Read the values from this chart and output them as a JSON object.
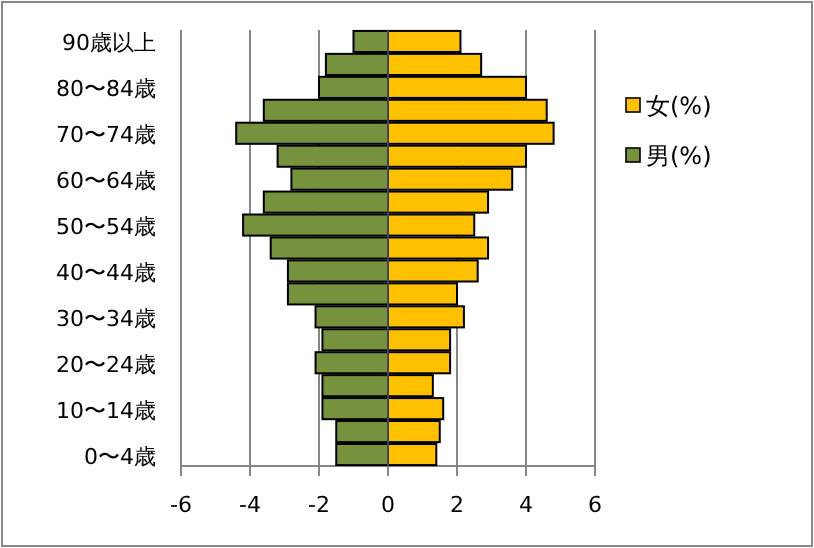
{
  "chart_data": {
    "type": "bar",
    "stacked": true,
    "orientation": "horizontal",
    "categories": [
      "90歳以上",
      null,
      "80〜84歳",
      null,
      "70〜74歳",
      null,
      "60〜64歳",
      null,
      "50〜54歳",
      null,
      "40〜44歳",
      null,
      "30〜34歳",
      null,
      "20〜24歳",
      null,
      "10〜14歳",
      null,
      "0〜4歳"
    ],
    "series": [
      {
        "name": "女(%)",
        "color": "#ffc000",
        "values": [
          2.1,
          2.7,
          4.0,
          4.6,
          4.8,
          4.0,
          3.6,
          2.9,
          2.5,
          2.9,
          2.6,
          2.0,
          2.2,
          1.8,
          1.8,
          1.3,
          1.6,
          1.5,
          1.4
        ]
      },
      {
        "name": "男(%)",
        "color": "#76923c",
        "values": [
          -1.0,
          -1.8,
          -2.0,
          -3.6,
          -4.4,
          -3.2,
          -2.8,
          -3.6,
          -4.2,
          -3.4,
          -2.9,
          -2.9,
          -2.1,
          -1.9,
          -2.1,
          -1.9,
          -1.9,
          -1.5,
          -1.5
        ]
      }
    ],
    "xlim": [
      -6,
      6
    ],
    "xticks": [
      -6,
      -4,
      -2,
      0,
      2,
      4,
      6
    ],
    "grid": "x",
    "legend": "right"
  }
}
